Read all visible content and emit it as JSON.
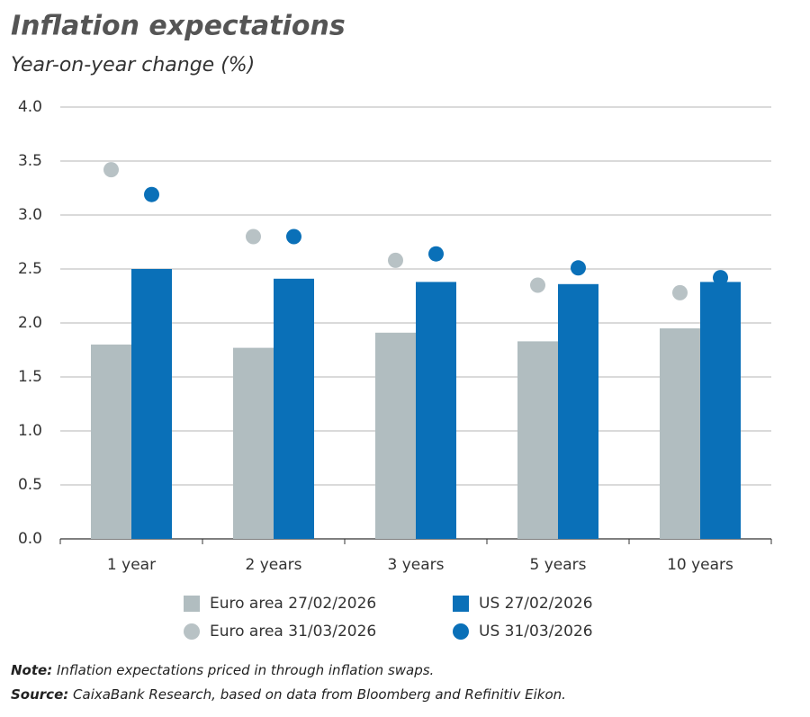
{
  "chart_data": {
    "type": "bar",
    "title": "Inflation expectations",
    "subtitle": "Year-on-year change (%)",
    "categories": [
      "1 year",
      "2 years",
      "3 years",
      "5 years",
      "10 years"
    ],
    "series": [
      {
        "name": "Euro area 27/02/2026",
        "type": "bar",
        "color": "#b1bdc0",
        "values": [
          1.8,
          1.77,
          1.91,
          1.83,
          1.95
        ]
      },
      {
        "name": "US 27/02/2026",
        "type": "bar",
        "color": "#0a70b8",
        "values": [
          2.5,
          2.41,
          2.38,
          2.36,
          2.38
        ]
      },
      {
        "name": "Euro area 31/03/2026",
        "type": "scatter",
        "color": "#b8c2c5",
        "values": [
          3.42,
          2.8,
          2.58,
          2.35,
          2.28
        ]
      },
      {
        "name": "US 31/03/2026",
        "type": "scatter",
        "color": "#0a70b8",
        "values": [
          3.19,
          2.8,
          2.64,
          2.51,
          2.42
        ]
      }
    ],
    "ylim": [
      0,
      4
    ],
    "yticks": [
      {
        "value": 0,
        "label": "0.0"
      },
      0.5,
      {
        "value": 1,
        "label": "1.0"
      },
      1.5,
      {
        "value": 2,
        "label": "2.0"
      },
      2.5,
      {
        "value": 3,
        "label": "3.0"
      },
      3.5,
      {
        "value": 4,
        "label": "4.0"
      }
    ],
    "grid": true,
    "note": {
      "label": "Note:",
      "text": "Inflation expectations priced in through inflation swaps."
    },
    "source": {
      "label": "Source:",
      "text": "CaixaBank Research, based on data from Bloomberg and Refinitiv Eikon."
    }
  }
}
